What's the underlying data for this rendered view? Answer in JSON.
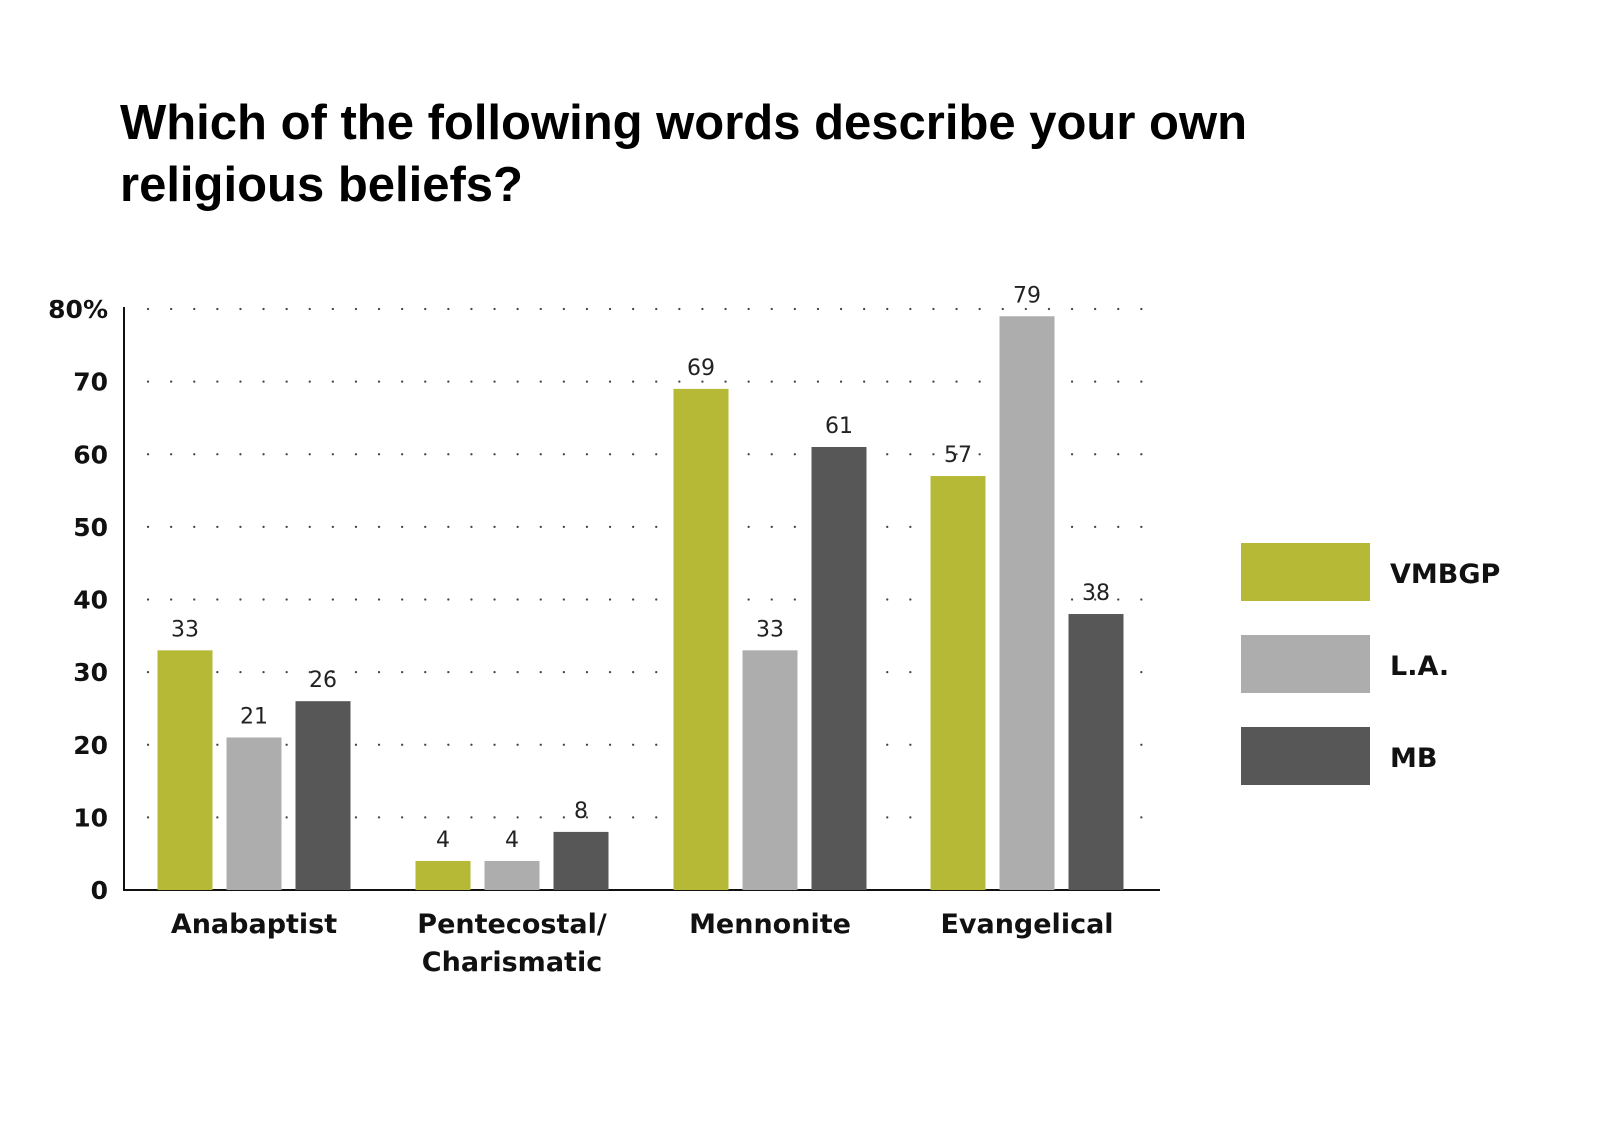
{
  "chart_data": {
    "type": "bar",
    "title_lines": [
      "Which of the following words describe your own",
      "religious beliefs?"
    ],
    "categories": [
      [
        "Anabaptist"
      ],
      [
        "Pentecostal/",
        "Charismatic"
      ],
      [
        "Mennonite"
      ],
      [
        "Evangelical"
      ]
    ],
    "series": [
      {
        "name": "VMBGP",
        "color": "#b5b935",
        "values": [
          33,
          4,
          69,
          57
        ]
      },
      {
        "name": "L.A.",
        "color": "#adadad",
        "values": [
          21,
          4,
          33,
          79
        ]
      },
      {
        "name": "MB",
        "color": "#575757",
        "values": [
          26,
          8,
          61,
          38
        ]
      }
    ],
    "y_ticks": [
      "0",
      "10",
      "20",
      "30",
      "40",
      "50",
      "60",
      "70",
      "80%"
    ],
    "ylim": [
      0,
      80
    ],
    "xlabel": "",
    "ylabel": "",
    "grid": "dotted",
    "legend_position": "right"
  }
}
